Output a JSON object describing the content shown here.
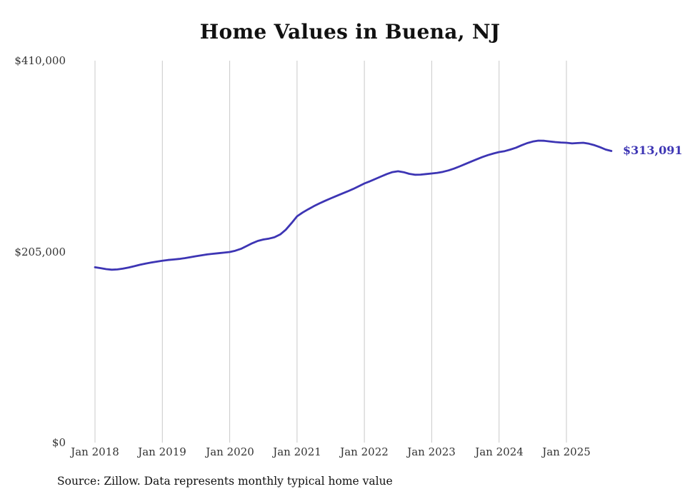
{
  "chart_data": {
    "type": "line",
    "title": "Home Values in Buena, NJ",
    "source_note": "Source: Zillow. Data represents monthly typical home value",
    "end_label": "$313,091",
    "end_value": 313091,
    "line_color": "#3d35b4",
    "grid": "vertical-only",
    "legend": "none",
    "ylim": [
      0,
      410000
    ],
    "y_ticks": [
      410000,
      205000,
      0
    ],
    "y_tick_labels": [
      "$410,000",
      "$205,000",
      "$0"
    ],
    "x_tick_labels": [
      "Jan 2018",
      "Jan 2019",
      "Jan 2020",
      "Jan 2021",
      "Jan 2022",
      "Jan 2023",
      "Jan 2024",
      "Jan 2025"
    ],
    "series": [
      {
        "name": "Monthly typical home value",
        "start_month": "2018-01",
        "frequency": "monthly",
        "values": [
          188200,
          187300,
          186200,
          185600,
          185900,
          186800,
          188000,
          189400,
          190900,
          192200,
          193300,
          194300,
          195200,
          196000,
          196600,
          197200,
          198000,
          199000,
          200100,
          201100,
          202000,
          202700,
          203300,
          203900,
          204600,
          206000,
          208000,
          211000,
          214000,
          216500,
          218000,
          219000,
          220500,
          223500,
          228500,
          235500,
          242900,
          247000,
          250500,
          253800,
          256800,
          259600,
          262200,
          264700,
          267200,
          269700,
          272300,
          275200,
          278200,
          280600,
          283200,
          285800,
          288300,
          290400,
          291300,
          290300,
          288500,
          287500,
          287700,
          288300,
          288900,
          289600,
          290700,
          292200,
          294200,
          296600,
          299100,
          301600,
          304100,
          306500,
          308600,
          310400,
          311900,
          312900,
          314600,
          316600,
          319100,
          321500,
          323200,
          324200,
          324000,
          323300,
          322600,
          322200,
          321900,
          321200,
          321600,
          321900,
          320900,
          319300,
          317100,
          314600,
          313091
        ]
      }
    ]
  }
}
